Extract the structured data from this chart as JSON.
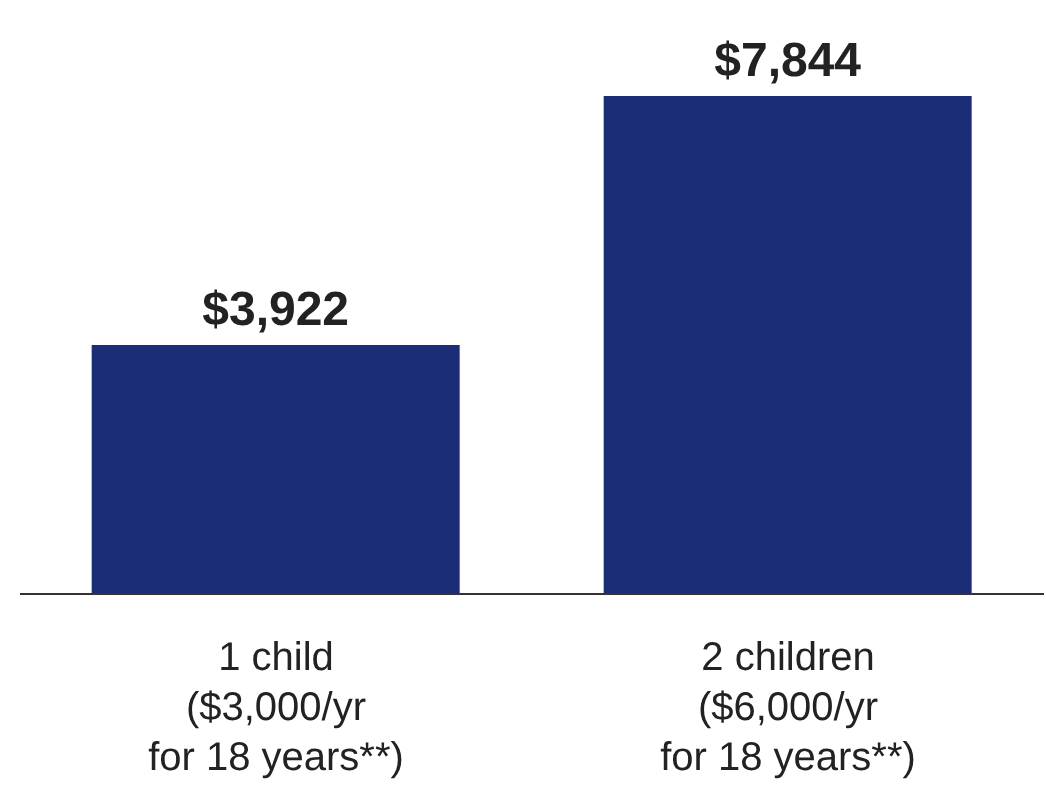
{
  "chart_data": {
    "type": "bar",
    "categories": [
      "1 child\n($3,000/yr\nfor 18 years**)",
      "2 children\n($6,000/yr\nfor 18 years**)"
    ],
    "values": [
      3922,
      7844
    ],
    "color": "#1c2d78",
    "value_labels": [
      "$3,922",
      "$7,844"
    ]
  }
}
